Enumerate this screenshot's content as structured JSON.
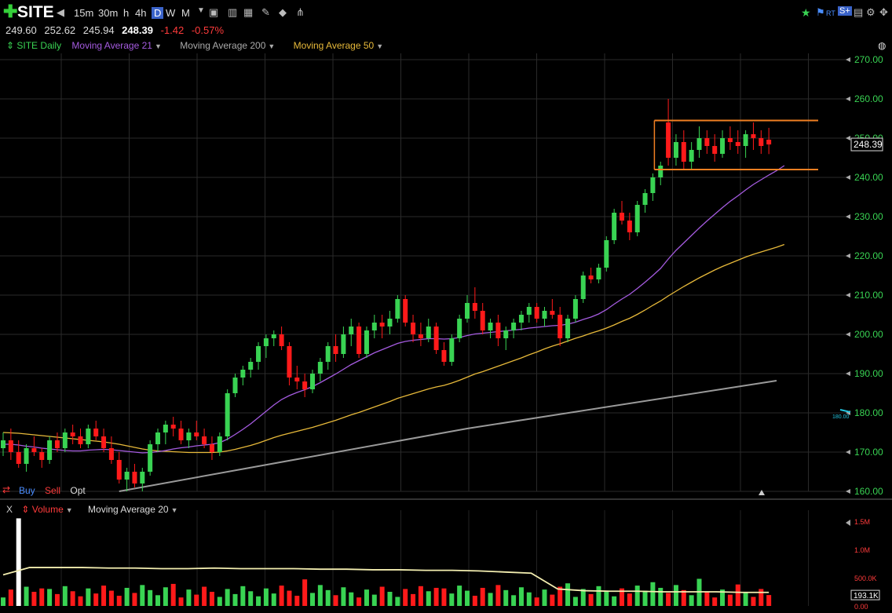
{
  "toolbar": {
    "symbol": "SITE",
    "timeframes": [
      "15m",
      "30m",
      "h",
      "4h",
      "D",
      "W",
      "M"
    ],
    "active_timeframe": "D",
    "rt_label": "RT",
    "s_label": "S+"
  },
  "quote": {
    "open": "249.60",
    "high": "252.62",
    "low": "245.94",
    "close": "248.39",
    "change": "-1.42",
    "change_pct": "-0.57%"
  },
  "legend": {
    "main": "SITE Daily",
    "ma21": "Moving Average 21",
    "ma200": "Moving Average 200",
    "ma50": "Moving Average 50"
  },
  "trade": {
    "buy": "Buy",
    "sell": "Sell",
    "opt": "Opt"
  },
  "volume_legend": {
    "close": "X",
    "volume": "Volume",
    "ma": "Moving Average 20"
  },
  "colors": {
    "up": "#39d353",
    "down": "#ff1a1a",
    "ma21": "#a55be0",
    "ma50": "#e7b93a",
    "ma200": "#9a9a9a",
    "box": "#f07f22",
    "volma": "#f3eeb0"
  },
  "chart_data": {
    "type": "candlestick",
    "price_axis": {
      "min": 160,
      "max": 270,
      "ticks": [
        "160.00",
        "170.00",
        "180.00",
        "190.00",
        "200.00",
        "210.00",
        "220.00",
        "230.00",
        "240.00",
        "250.00",
        "260.00",
        "270.00"
      ]
    },
    "last_price_label": "248.39",
    "alert_label": "180.00",
    "volume_axis": {
      "min": 0,
      "max": 1.5,
      "ticks": [
        "0.00",
        "500.0K",
        "1.0M",
        "1.5M"
      ],
      "last_label": "193.1K"
    },
    "candles": [
      [
        171,
        175,
        169,
        173
      ],
      [
        173,
        176,
        168,
        170
      ],
      [
        170,
        173,
        166,
        167
      ],
      [
        167,
        172,
        165,
        171
      ],
      [
        171,
        174,
        169,
        170
      ],
      [
        170,
        171,
        166,
        168
      ],
      [
        168,
        174,
        167,
        173
      ],
      [
        173,
        175,
        170,
        171
      ],
      [
        171,
        176,
        170,
        175
      ],
      [
        175,
        177,
        172,
        174
      ],
      [
        174,
        176,
        171,
        172
      ],
      [
        172,
        177,
        171,
        176
      ],
      [
        176,
        178,
        173,
        174
      ],
      [
        174,
        176,
        170,
        171
      ],
      [
        171,
        174,
        167,
        168
      ],
      [
        168,
        170,
        162,
        163
      ],
      [
        163,
        166,
        160,
        165
      ],
      [
        165,
        167,
        161,
        162
      ],
      [
        162,
        166,
        160,
        165
      ],
      [
        165,
        173,
        164,
        172
      ],
      [
        172,
        176,
        170,
        175
      ],
      [
        175,
        178,
        172,
        177
      ],
      [
        177,
        179,
        174,
        176
      ],
      [
        176,
        178,
        172,
        173
      ],
      [
        173,
        176,
        171,
        175
      ],
      [
        175,
        178,
        173,
        174
      ],
      [
        174,
        176,
        171,
        172
      ],
      [
        172,
        174,
        168,
        170
      ],
      [
        170,
        175,
        169,
        174
      ],
      [
        174,
        186,
        173,
        185
      ],
      [
        185,
        190,
        184,
        189
      ],
      [
        189,
        192,
        187,
        191
      ],
      [
        191,
        194,
        189,
        193
      ],
      [
        193,
        198,
        191,
        197
      ],
      [
        197,
        200,
        194,
        199
      ],
      [
        199,
        201,
        197,
        200
      ],
      [
        200,
        202,
        196,
        197
      ],
      [
        197,
        198,
        187,
        189
      ],
      [
        189,
        192,
        186,
        188
      ],
      [
        188,
        190,
        184,
        186
      ],
      [
        186,
        191,
        185,
        190
      ],
      [
        190,
        194,
        188,
        193
      ],
      [
        193,
        198,
        191,
        197
      ],
      [
        197,
        200,
        193,
        195
      ],
      [
        195,
        202,
        194,
        200
      ],
      [
        200,
        204,
        197,
        202
      ],
      [
        202,
        203,
        194,
        195
      ],
      [
        195,
        202,
        194,
        201
      ],
      [
        201,
        205,
        199,
        203
      ],
      [
        203,
        205,
        199,
        202
      ],
      [
        202,
        206,
        200,
        204
      ],
      [
        204,
        210,
        203,
        209
      ],
      [
        209,
        210,
        202,
        203
      ],
      [
        203,
        205,
        198,
        200
      ],
      [
        200,
        203,
        197,
        199
      ],
      [
        199,
        204,
        198,
        202
      ],
      [
        202,
        203,
        195,
        196
      ],
      [
        196,
        198,
        192,
        193
      ],
      [
        193,
        200,
        192,
        199
      ],
      [
        199,
        205,
        198,
        204
      ],
      [
        204,
        210,
        203,
        208
      ],
      [
        208,
        212,
        204,
        206
      ],
      [
        206,
        208,
        200,
        201
      ],
      [
        201,
        204,
        199,
        203
      ],
      [
        203,
        205,
        197,
        199
      ],
      [
        199,
        202,
        196,
        201
      ],
      [
        201,
        204,
        199,
        203
      ],
      [
        203,
        206,
        201,
        205
      ],
      [
        205,
        208,
        203,
        207
      ],
      [
        207,
        208,
        203,
        204
      ],
      [
        204,
        207,
        202,
        206
      ],
      [
        206,
        209,
        204,
        205
      ],
      [
        205,
        207,
        197,
        199
      ],
      [
        199,
        205,
        198,
        204
      ],
      [
        204,
        210,
        203,
        209
      ],
      [
        209,
        216,
        208,
        215
      ],
      [
        215,
        217,
        213,
        214
      ],
      [
        214,
        218,
        213,
        217
      ],
      [
        217,
        225,
        216,
        224
      ],
      [
        224,
        232,
        223,
        231
      ],
      [
        231,
        234,
        228,
        229
      ],
      [
        229,
        231,
        224,
        226
      ],
      [
        226,
        234,
        225,
        233
      ],
      [
        233,
        237,
        231,
        236
      ],
      [
        236,
        241,
        234,
        240
      ],
      [
        240,
        244,
        238,
        243
      ],
      [
        254,
        260,
        243,
        245
      ],
      [
        245,
        251,
        243,
        249
      ],
      [
        249,
        252,
        242,
        244
      ],
      [
        244,
        249,
        242,
        247
      ],
      [
        247,
        253,
        245,
        250
      ],
      [
        250,
        252,
        246,
        248
      ],
      [
        248,
        251,
        244,
        246
      ],
      [
        246,
        252,
        245,
        250
      ],
      [
        250,
        253,
        247,
        249
      ],
      [
        249,
        252,
        246,
        248
      ],
      [
        248,
        252,
        245,
        251
      ],
      [
        251,
        254,
        247,
        250
      ],
      [
        250,
        252,
        246,
        248
      ],
      [
        249.6,
        252.62,
        245.94,
        248.39
      ]
    ],
    "ma21": [
      172,
      172,
      171.8,
      171.5,
      171.3,
      171,
      170.8,
      170.6,
      170.4,
      170.3,
      170.3,
      170.5,
      170.6,
      170.7,
      170.6,
      170.4,
      170.2,
      170,
      169.8,
      169.9,
      170.1,
      170.4,
      170.8,
      171.1,
      171.3,
      171.6,
      171.8,
      172,
      172.4,
      173.3,
      174.5,
      175.8,
      177.2,
      178.8,
      180.4,
      182,
      183.4,
      184.4,
      185.2,
      185.9,
      186.7,
      187.7,
      188.8,
      189.9,
      191.1,
      192.3,
      193.3,
      194.3,
      195.3,
      196.1,
      196.9,
      197.7,
      198.2,
      198.5,
      198.7,
      198.9,
      198.9,
      198.8,
      198.9,
      199.2,
      199.7,
      200.1,
      200.3,
      200.5,
      200.7,
      200.9,
      201.1,
      201.3,
      201.6,
      201.8,
      202,
      202.2,
      202.3,
      202.6,
      203.1,
      203.8,
      204.4,
      205.2,
      206.3,
      207.7,
      209,
      210.2,
      211.7,
      213.3,
      215,
      216.8,
      219.2,
      221.4,
      223.3,
      225.2,
      227.1,
      228.9,
      230.6,
      232.3,
      233.9,
      235.3,
      236.8,
      238.2,
      239.4,
      240.6,
      241.7,
      243
    ],
    "ma50": [
      175,
      174.9,
      174.8,
      174.6,
      174.4,
      174.2,
      174,
      173.8,
      173.6,
      173.4,
      173.2,
      173,
      172.8,
      172.6,
      172.3,
      172,
      171.6,
      171.2,
      170.8,
      170.5,
      170.3,
      170.2,
      170.1,
      170,
      169.9,
      169.9,
      169.9,
      169.9,
      170,
      170.3,
      170.7,
      171.2,
      171.7,
      172.3,
      173,
      173.7,
      174.3,
      174.8,
      175.3,
      175.8,
      176.3,
      176.9,
      177.5,
      178.1,
      178.8,
      179.5,
      180.1,
      180.8,
      181.5,
      182.2,
      182.9,
      183.7,
      184.3,
      184.9,
      185.5,
      186.1,
      186.6,
      187,
      187.6,
      188.3,
      189.1,
      189.9,
      190.5,
      191.2,
      191.9,
      192.6,
      193.3,
      194,
      194.8,
      195.5,
      196.3,
      197,
      197.6,
      198.3,
      199,
      199.6,
      200.3,
      200.9,
      201.6,
      202.4,
      203.3,
      204.1,
      205.1,
      206.2,
      207.4,
      208.5,
      209.8,
      211,
      212.2,
      213.3,
      214.4,
      215.4,
      216.4,
      217.3,
      218.1,
      218.9,
      219.7,
      220.4,
      221,
      221.6,
      222.2,
      222.9
    ],
    "ma200_range": [
      160,
      188.2
    ],
    "range_box": {
      "top": 254.5,
      "bottom": 242
    },
    "volume_ma": [
      0.55,
      0.68,
      0.68,
      0.68,
      0.67,
      0.67,
      0.66,
      0.66,
      0.67,
      0.66,
      0.66,
      0.66,
      0.65,
      0.65,
      0.64,
      0.64,
      0.63,
      0.63,
      0.62,
      0.6,
      0.58,
      0.3,
      0.27,
      0.26,
      0.26,
      0.25,
      0.25,
      0.25,
      0.24,
      0.24
    ]
  }
}
